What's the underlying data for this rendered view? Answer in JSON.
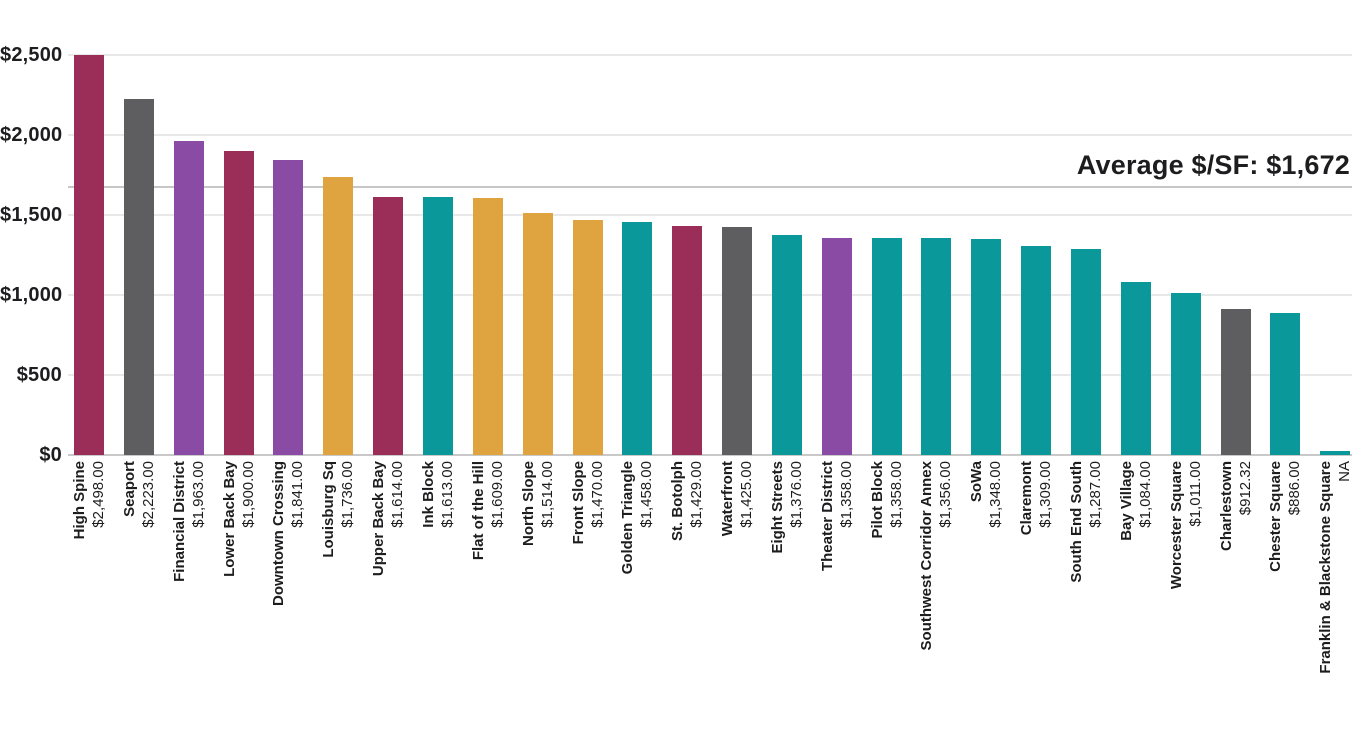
{
  "chart_data": {
    "type": "bar",
    "title": "",
    "ylabel": "",
    "xlabel": "",
    "ylim": [
      0,
      2500
    ],
    "grid": true,
    "yticks": [
      0,
      500,
      1000,
      1500,
      2000,
      2500
    ],
    "ytick_labels": [
      "$0",
      "$500",
      "$1,000",
      "$1,500",
      "$2,000",
      "$2,500"
    ],
    "annotation": {
      "label": "Average $/SF: $1,672",
      "value": 1672
    },
    "palette": {
      "crimson": "#9B2D59",
      "gray": "#5E5E60",
      "purple": "#8A4BA5",
      "gold": "#DFA440",
      "teal": "#0B989B"
    },
    "text_color": "#1d1d1f",
    "gridline_color": "#e8e8e8",
    "average_line_color": "#c6c6c6",
    "bars": [
      {
        "name": "High Spine",
        "value": 2498,
        "value_label": "$2,498.00",
        "color": "crimson"
      },
      {
        "name": "Seaport",
        "value": 2223,
        "value_label": "$2,223.00",
        "color": "gray"
      },
      {
        "name": "Financial District",
        "value": 1963,
        "value_label": "$1,963.00",
        "color": "purple"
      },
      {
        "name": "Lower Back Bay",
        "value": 1900,
        "value_label": "$1,900.00",
        "color": "crimson"
      },
      {
        "name": "Downtown Crossing",
        "value": 1841,
        "value_label": "$1,841.00",
        "color": "purple"
      },
      {
        "name": "Louisburg Sq",
        "value": 1736,
        "value_label": "$1,736.00",
        "color": "gold"
      },
      {
        "name": "Upper Back Bay",
        "value": 1614,
        "value_label": "$1,614.00",
        "color": "crimson"
      },
      {
        "name": "Ink Block",
        "value": 1613,
        "value_label": "$1,613.00",
        "color": "teal"
      },
      {
        "name": "Flat of the Hill",
        "value": 1609,
        "value_label": "$1,609.00",
        "color": "gold"
      },
      {
        "name": "North Slope",
        "value": 1514,
        "value_label": "$1,514.00",
        "color": "gold"
      },
      {
        "name": "Front Slope",
        "value": 1470,
        "value_label": "$1,470.00",
        "color": "gold"
      },
      {
        "name": "Golden Triangle",
        "value": 1458,
        "value_label": "$1,458.00",
        "color": "teal"
      },
      {
        "name": "St. Botolph",
        "value": 1429,
        "value_label": "$1,429.00",
        "color": "crimson"
      },
      {
        "name": "Waterfront",
        "value": 1425,
        "value_label": "$1,425.00",
        "color": "gray"
      },
      {
        "name": "Eight Streets",
        "value": 1376,
        "value_label": "$1,376.00",
        "color": "teal"
      },
      {
        "name": "Theater District",
        "value": 1358,
        "value_label": "$1,358.00",
        "color": "purple"
      },
      {
        "name": "Pilot Block",
        "value": 1358,
        "value_label": "$1,358.00",
        "color": "teal"
      },
      {
        "name": "Southwest Corridor Annex",
        "value": 1356,
        "value_label": "$1,356.00",
        "color": "teal"
      },
      {
        "name": "SoWa",
        "value": 1348,
        "value_label": "$1,348.00",
        "color": "teal"
      },
      {
        "name": "Claremont",
        "value": 1309,
        "value_label": "$1,309.00",
        "color": "teal"
      },
      {
        "name": "South End South",
        "value": 1287,
        "value_label": "$1,287.00",
        "color": "teal"
      },
      {
        "name": "Bay Village",
        "value": 1084,
        "value_label": "$1,084.00",
        "color": "teal"
      },
      {
        "name": "Worcester Square",
        "value": 1011,
        "value_label": "$1,011.00",
        "color": "teal"
      },
      {
        "name": "Charlestown",
        "value": 912.32,
        "value_label": "$912.32",
        "color": "gray"
      },
      {
        "name": "Chester Square",
        "value": 886,
        "value_label": "$886.00",
        "color": "teal"
      },
      {
        "name": "Franklin & Blackstone Square",
        "value": null,
        "value_label": "NA",
        "color": "teal"
      }
    ]
  }
}
